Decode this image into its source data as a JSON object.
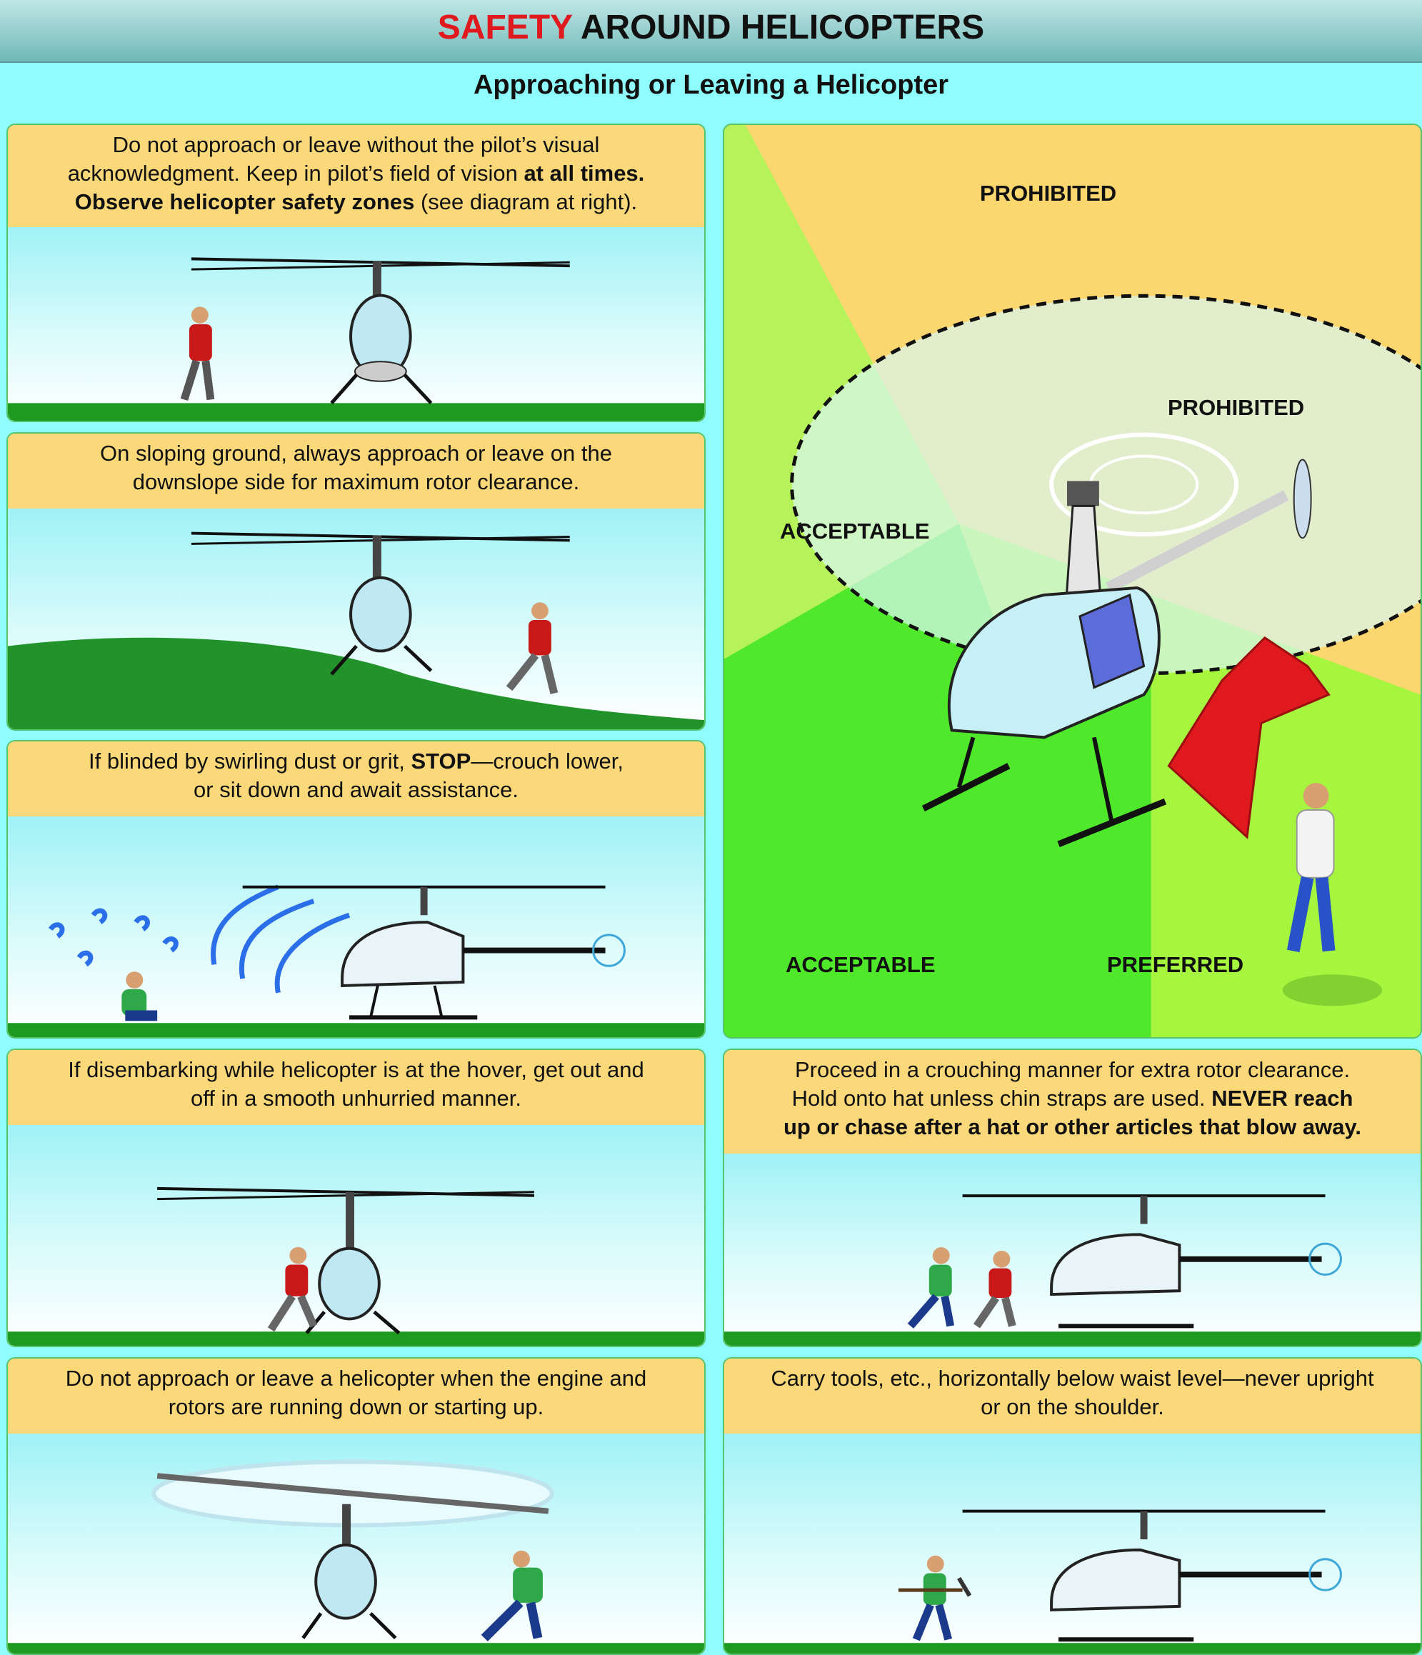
{
  "header": {
    "title_accent": "SAFETY",
    "title_rest": " AROUND HELICOPTERS",
    "subtitle": "Approaching or Leaving a Helicopter"
  },
  "panels": {
    "p1": {
      "line1": "Do not approach or leave without the pilot’s visual",
      "line2a": "acknowledgment. Keep in pilot’s field of vision ",
      "line2b": "at all times.",
      "line3a": "Observe helicopter safety zones",
      "line3b": " (see diagram at right)."
    },
    "p2": {
      "line1": "On sloping ground, always approach or leave on the",
      "line2": "downslope side for maximum rotor clearance."
    },
    "p3": {
      "line1a": "If blinded by swirling dust or grit, ",
      "line1b": "STOP",
      "line1c": "—crouch lower,",
      "line2": "or sit down and await assistance."
    },
    "p4": {
      "line1": "If disembarking while helicopter is at the hover, get out and",
      "line2": "off in a smooth unhurried manner."
    },
    "p5": {
      "line1": "Do not approach or leave a helicopter when the engine and",
      "line2": "rotors are running down or starting up."
    },
    "p6": {
      "line1": "Proceed in a crouching manner for extra rotor clearance.",
      "line2a": "Hold onto hat unless chin straps are used. ",
      "line2b": "NEVER reach",
      "line3": "up or chase after a hat or other articles that blow away."
    },
    "p7": {
      "line1": "Carry tools, etc., horizontally below waist level—never upright",
      "line2": "or on the shoulder."
    }
  },
  "diagram": {
    "zone_top": "PROHIBITED",
    "zone_rotor": "PROHIBITED",
    "zone_left_upper": "ACCEPTABLE",
    "zone_left_lower": "ACCEPTABLE",
    "zone_right_lower": "PREFERRED",
    "colors": {
      "prohibited": "#fcd66f",
      "acceptable_light": "#b6f25a",
      "acceptable_dark": "#4fe82a",
      "preferred": "#a6f53e",
      "arrow": "#e0191f"
    }
  }
}
